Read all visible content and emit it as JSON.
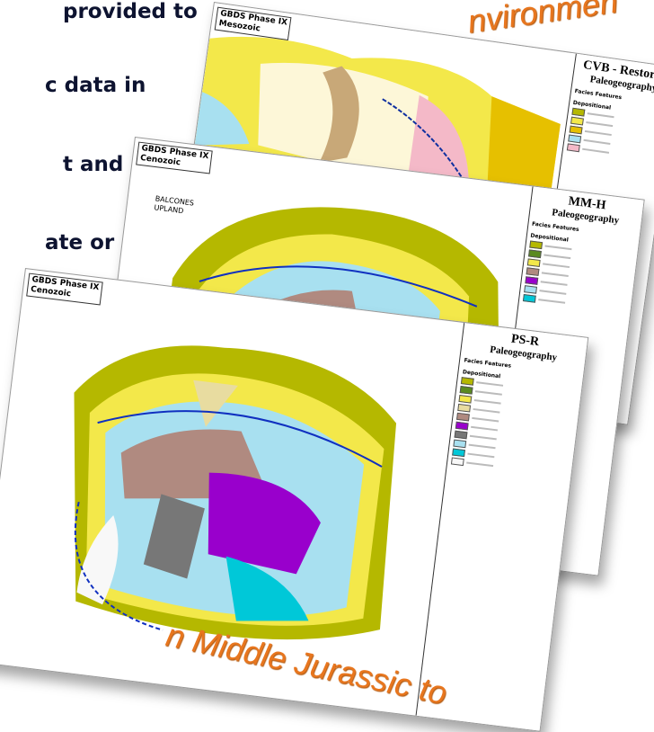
{
  "slide_text": {
    "lines": [
      "provided to",
      "c data in",
      "t and",
      "ate or"
    ],
    "top_banner": "nvironmen",
    "bottom_banner": "n Middle Jurassic to"
  },
  "maps": [
    {
      "label": "GBDS Phase IX",
      "era": "Mesozoic",
      "legend_title": "CVB - Restored",
      "legend_subtitle": "Paleogeography",
      "legend_heading": "Facies Features",
      "legend_section": "Depositional"
    },
    {
      "label": "GBDS Phase IX",
      "era": "Cenozoic",
      "place_label": "BALCONES UPLAND",
      "legend_title": "MM-H",
      "legend_subtitle": "Paleogeography",
      "legend_heading": "Facies Features",
      "legend_section": "Depositional"
    },
    {
      "label": "GBDS Phase IX",
      "era": "Cenozoic",
      "legend_title": "PS-R",
      "legend_subtitle": "Paleogeography",
      "legend_heading": "Facies Features",
      "legend_section": "Depositional"
    }
  ]
}
